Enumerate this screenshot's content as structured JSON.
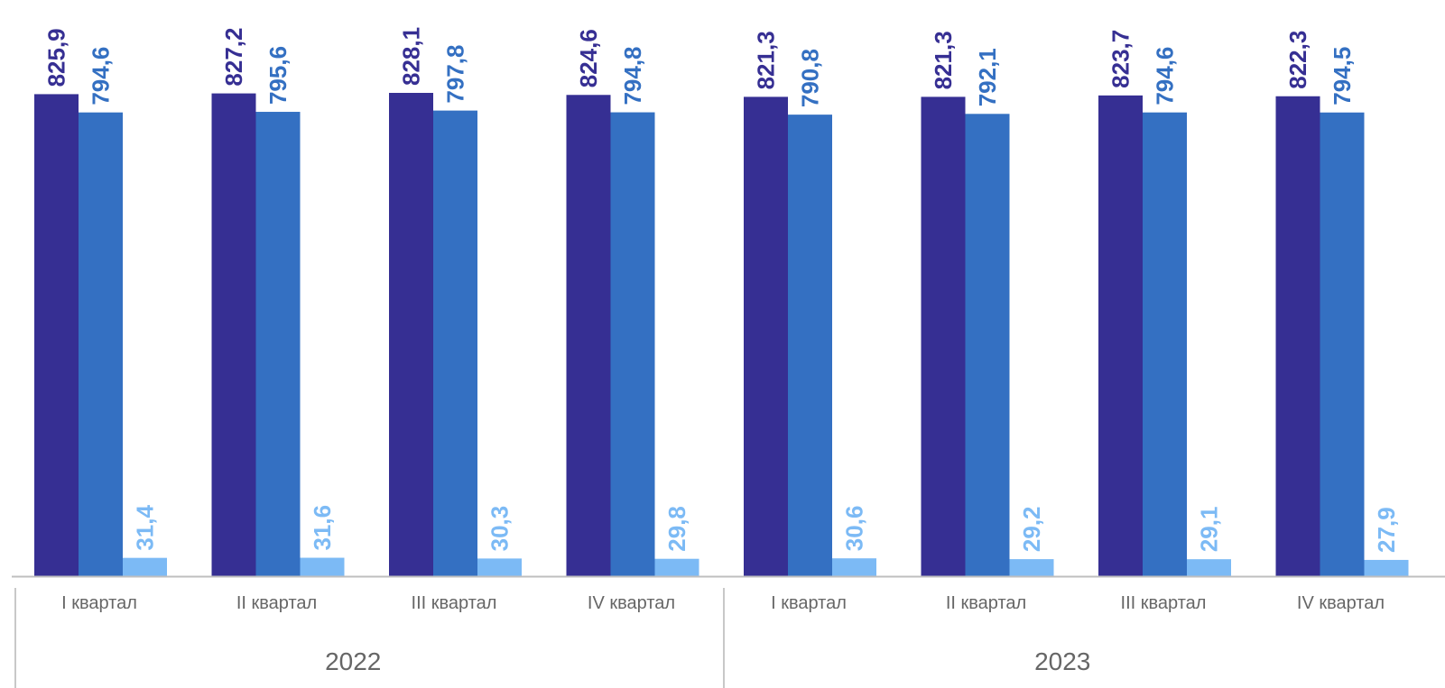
{
  "chart_data": {
    "type": "bar",
    "categories": [
      "I квартал",
      "II квартал",
      "III квартал",
      "IV квартал",
      "I квартал",
      "II квартал",
      "III квартал",
      "IV квартал"
    ],
    "groups": [
      {
        "label": "2022",
        "span": [
          0,
          3
        ]
      },
      {
        "label": "2023",
        "span": [
          4,
          7
        ]
      }
    ],
    "series": [
      {
        "values": [
          825.9,
          827.2,
          828.1,
          824.6,
          821.3,
          821.3,
          823.7,
          822.3
        ],
        "labels": [
          "825,9",
          "827,2",
          "828,1",
          "824,6",
          "821,3",
          "821,3",
          "823,7",
          "822,3"
        ],
        "color": "#362F93"
      },
      {
        "values": [
          794.6,
          795.6,
          797.8,
          794.8,
          790.8,
          792.1,
          794.6,
          794.5
        ],
        "labels": [
          "794,6",
          "795,6",
          "797,8",
          "794,8",
          "790,8",
          "792,1",
          "794,6",
          "794,5"
        ],
        "color": "#3470C2"
      },
      {
        "values": [
          31.4,
          31.6,
          30.3,
          29.8,
          30.6,
          29.2,
          29.1,
          27.9
        ],
        "labels": [
          "31,4",
          "31,6",
          "30,3",
          "29,8",
          "30,6",
          "29,2",
          "29,1",
          "27,9"
        ],
        "color": "#7CBAF5"
      }
    ],
    "title": "",
    "xlabel": "",
    "ylabel": "",
    "ylim": [
      0,
      830
    ],
    "data_labels": true,
    "data_label_rotation": "vertical",
    "grid": false,
    "legend": "none"
  }
}
